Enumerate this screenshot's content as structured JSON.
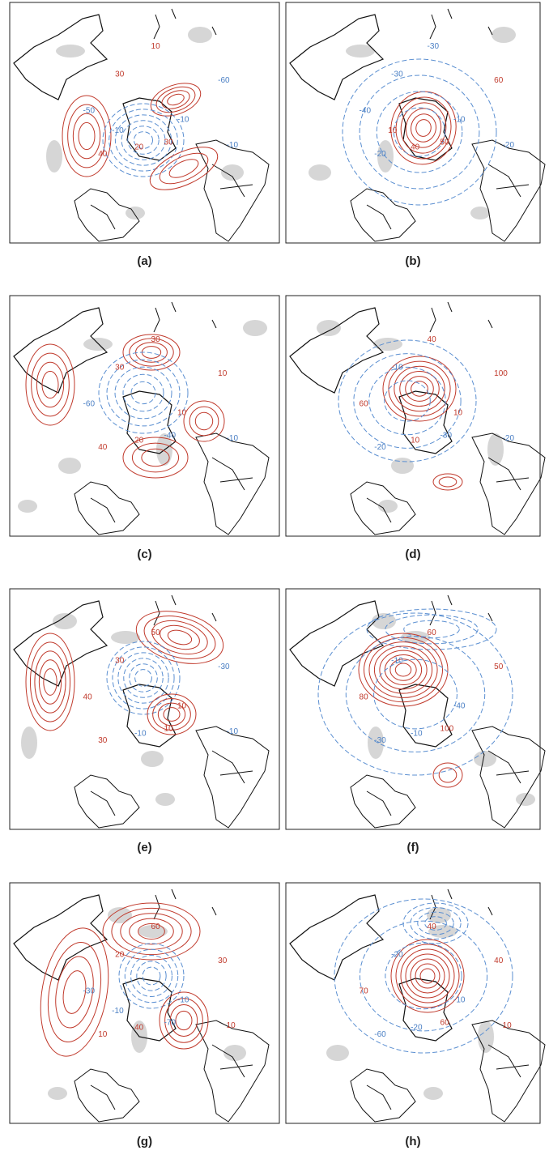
{
  "panels": [
    {
      "label": "(a)",
      "contour_labels": [
        "-10",
        "40",
        "10",
        "30",
        "-50",
        "-60",
        "20",
        "30",
        "-10",
        "-10"
      ]
    },
    {
      "label": "(b)",
      "contour_labels": [
        "-10",
        "-20",
        "-30",
        "50",
        "-40",
        "60",
        "40",
        "-30",
        "-20",
        "10"
      ]
    },
    {
      "label": "(c)",
      "contour_labels": [
        "10",
        "40",
        "30",
        "-40",
        "-60",
        "10",
        "20",
        "30",
        "-10"
      ]
    },
    {
      "label": "(d)",
      "contour_labels": [
        "10",
        "-20",
        "40",
        "-30",
        "60",
        "100",
        "10",
        "-10",
        "-20"
      ]
    },
    {
      "label": "(e)",
      "contour_labels": [
        "10",
        "30",
        "50",
        "10",
        "40",
        "-30",
        "-10",
        "30",
        "-10"
      ]
    },
    {
      "label": "(f)",
      "contour_labels": [
        "-40",
        "-30",
        "60",
        "100",
        "80",
        "50",
        "-10",
        "-10"
      ]
    },
    {
      "label": "(g)",
      "contour_labels": [
        "-10",
        "10",
        "60",
        "-70",
        "-30",
        "30",
        "40",
        "20",
        "10",
        "-10"
      ]
    },
    {
      "label": "(h)",
      "contour_labels": [
        "-10",
        "-60",
        "40",
        "60",
        "70",
        "40",
        "-20",
        "-20",
        "10"
      ]
    }
  ]
}
